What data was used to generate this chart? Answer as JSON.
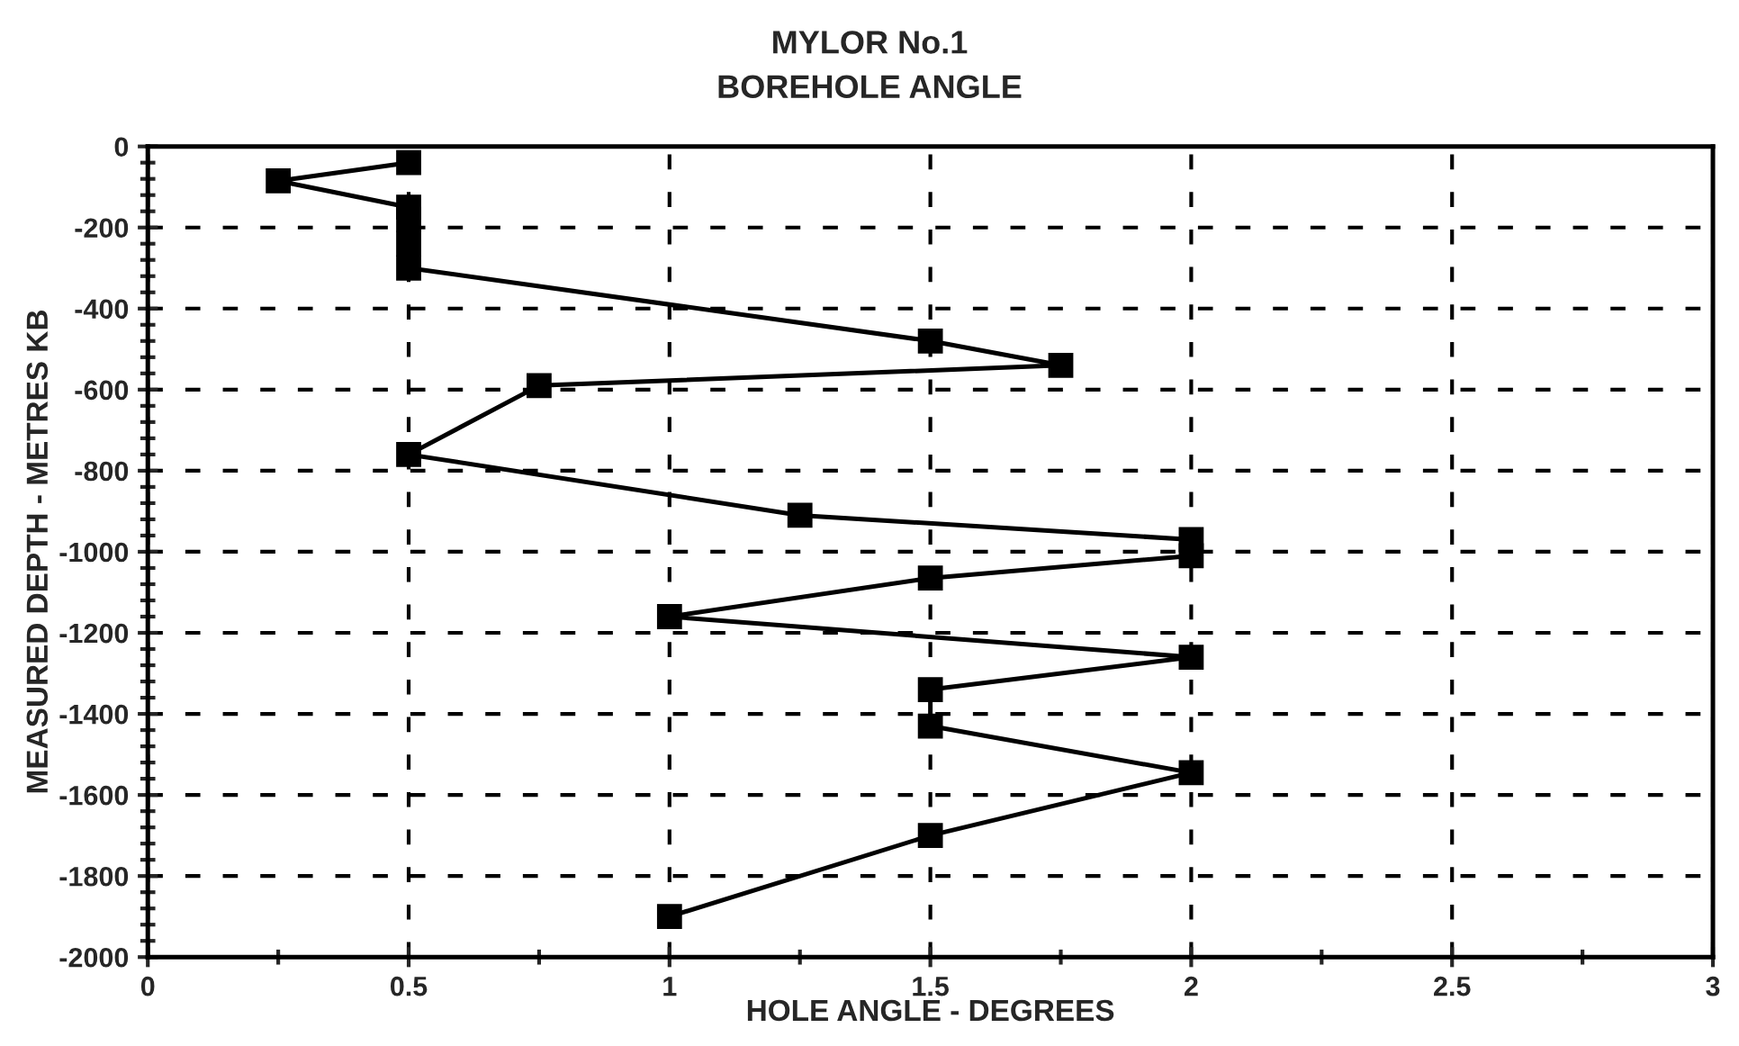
{
  "chart_data": {
    "type": "line",
    "title": "MYLOR No.1\nBOREHOLE ANGLE",
    "xlabel": "HOLE ANGLE - DEGREES",
    "ylabel": "MEASURED DEPTH - METRES KB",
    "x": [
      0.5,
      0.25,
      0.5,
      0.5,
      0.5,
      0.5,
      1.5,
      1.75,
      0.75,
      0.5,
      1.25,
      2,
      2,
      1.5,
      1,
      2,
      1.5,
      1.5,
      2,
      1.5,
      1
    ],
    "series": [
      {
        "color": "#000000",
        "values": [
          -40,
          -85,
          -150,
          -180,
          -240,
          -300,
          -480,
          -540,
          -590,
          -760,
          -910,
          -970,
          -1010,
          -1065,
          -1160,
          -1260,
          -1340,
          -1430,
          -1545,
          -1700,
          -1900
        ]
      }
    ],
    "xlim": [
      0,
      3
    ],
    "xticks": [
      0,
      0.5,
      1,
      1.5,
      2,
      2.5,
      3
    ],
    "ylim": [
      -2000,
      0
    ],
    "yticks": [
      {
        "value": -2000,
        "label": "-2000"
      },
      {
        "value": -1800,
        "label": "-1800"
      },
      {
        "value": -1600,
        "label": "-1600"
      },
      {
        "value": -1400,
        "label": "-1400"
      },
      {
        "value": -1200,
        "label": "-1200"
      },
      {
        "value": -1000,
        "label": "-1000"
      },
      {
        "value": -800,
        "label": "-800"
      },
      {
        "value": -600,
        "label": "-600"
      },
      {
        "value": -400,
        "label": "-400"
      },
      {
        "value": -200,
        "label": "-200"
      },
      {
        "value": 0,
        "label": "0"
      }
    ],
    "grid": true,
    "marker": "square",
    "line_style": "solid",
    "legend": false
  }
}
